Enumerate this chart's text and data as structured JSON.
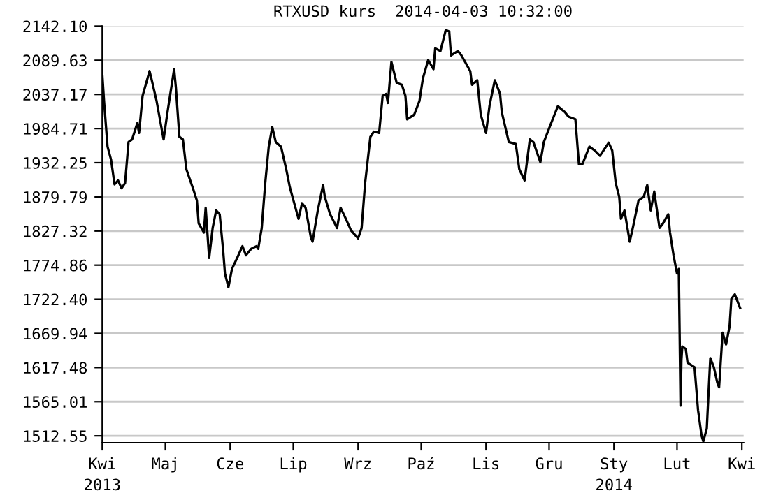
{
  "chart_data": {
    "type": "line",
    "title": "RTXUSD kurs  2014-04-03 10:32:00",
    "x": [
      "2013-04-03",
      "2013-04-04",
      "2013-04-06",
      "2013-04-08",
      "2013-04-10",
      "2013-04-12",
      "2013-04-14",
      "2013-04-16",
      "2013-04-18",
      "2013-04-20",
      "2013-04-23",
      "2013-04-24",
      "2013-04-26",
      "2013-04-30",
      "2013-05-01",
      "2013-05-04",
      "2013-05-08",
      "2013-05-10",
      "2013-05-14",
      "2013-05-15",
      "2013-05-17",
      "2013-05-19",
      "2013-05-21",
      "2013-05-25",
      "2013-05-27",
      "2013-05-28",
      "2013-05-31",
      "2013-06-01",
      "2013-06-03",
      "2013-06-05",
      "2013-06-07",
      "2013-06-09",
      "2013-06-11",
      "2013-06-12",
      "2013-06-14",
      "2013-06-16",
      "2013-06-19",
      "2013-06-22",
      "2013-06-24",
      "2013-06-27",
      "2013-06-30",
      "2013-07-01",
      "2013-07-03",
      "2013-07-05",
      "2013-07-07",
      "2013-07-09",
      "2013-07-11",
      "2013-07-14",
      "2013-07-17",
      "2013-07-19",
      "2013-07-24",
      "2013-07-26",
      "2013-07-28",
      "2013-07-31",
      "2013-08-01",
      "2013-08-04",
      "2013-08-07",
      "2013-08-08",
      "2013-08-11",
      "2013-08-15",
      "2013-08-17",
      "2013-08-20",
      "2013-08-23",
      "2013-08-27",
      "2013-08-29",
      "2013-08-31",
      "2013-09-03",
      "2013-09-05",
      "2013-09-08",
      "2013-09-10",
      "2013-09-12",
      "2013-09-13",
      "2013-09-15",
      "2013-09-18",
      "2013-09-21",
      "2013-09-23",
      "2013-09-24",
      "2013-09-28",
      "2013-10-01",
      "2013-10-03",
      "2013-10-06",
      "2013-10-09",
      "2013-10-10",
      "2013-10-13",
      "2013-10-16",
      "2013-10-18",
      "2013-10-19",
      "2013-10-23",
      "2013-10-25",
      "2013-10-30",
      "2013-10-31",
      "2013-11-03",
      "2013-11-05",
      "2013-11-08",
      "2013-11-10",
      "2013-11-13",
      "2013-11-16",
      "2013-11-17",
      "2013-11-21",
      "2013-11-25",
      "2013-11-27",
      "2013-11-30",
      "2013-12-03",
      "2013-12-05",
      "2013-12-09",
      "2013-12-11",
      "2013-12-15",
      "2013-12-19",
      "2013-12-23",
      "2013-12-25",
      "2013-12-29",
      "2013-12-31",
      "2014-01-02",
      "2014-01-06",
      "2014-01-09",
      "2014-01-12",
      "2014-01-17",
      "2014-01-19",
      "2014-01-21",
      "2014-01-23",
      "2014-01-24",
      "2014-01-26",
      "2014-01-29",
      "2014-01-31",
      "2014-02-03",
      "2014-02-06",
      "2014-02-08",
      "2014-02-10",
      "2014-02-12",
      "2014-02-15",
      "2014-02-17",
      "2014-02-20",
      "2014-02-21",
      "2014-02-23",
      "2014-02-25",
      "2014-02-26T00:00",
      "2014-02-26T12:00",
      "2014-02-27T00:00",
      "2014-02-27T12:00",
      "2014-02-28",
      "2014-03-02",
      "2014-03-03",
      "2014-03-07",
      "2014-03-09",
      "2014-03-11",
      "2014-03-12",
      "2014-03-14",
      "2014-03-15",
      "2014-03-16",
      "2014-03-18",
      "2014-03-20",
      "2014-03-21",
      "2014-03-23",
      "2014-03-25",
      "2014-03-27",
      "2014-03-28",
      "2014-03-30",
      "2014-04-01",
      "2014-04-02"
    ],
    "series": [
      {
        "color": "#000000",
        "values": [
          2069,
          2027,
          1957,
          1937,
          1899,
          1905,
          1893,
          1901,
          1964,
          1968,
          1993,
          1978,
          2035,
          2073,
          2062,
          2027,
          1968,
          2006,
          2076,
          2048,
          1972,
          1968,
          1922,
          1891,
          1874,
          1839,
          1825,
          1863,
          1786,
          1832,
          1859,
          1853,
          1797,
          1762,
          1741,
          1769,
          1786,
          1804,
          1790,
          1800,
          1804,
          1800,
          1832,
          1901,
          1957,
          1987,
          1964,
          1957,
          1922,
          1895,
          1846,
          1870,
          1863,
          1818,
          1811,
          1859,
          1898,
          1880,
          1853,
          1832,
          1863,
          1846,
          1828,
          1816,
          1832,
          1901,
          1972,
          1980,
          1978,
          2035,
          2038,
          2024,
          2087,
          2055,
          2052,
          2035,
          1999,
          2006,
          2027,
          2062,
          2090,
          2076,
          2108,
          2104,
          2136,
          2134,
          2097,
          2104,
          2097,
          2073,
          2052,
          2059,
          2006,
          1978,
          2020,
          2059,
          2038,
          2010,
          1964,
          1961,
          1922,
          1905,
          1968,
          1964,
          1933,
          1964,
          1992,
          2019,
          2010,
          2003,
          1999,
          1930,
          1930,
          1957,
          1951,
          1943,
          1963,
          1951,
          1901,
          1880,
          1846,
          1859,
          1811,
          1835,
          1874,
          1880,
          1898,
          1859,
          1888,
          1832,
          1839,
          1853,
          1825,
          1790,
          1762,
          1769,
          1667,
          1559,
          1629,
          1650,
          1646,
          1625,
          1618,
          1552,
          1513,
          1504,
          1524,
          1580,
          1632,
          1618,
          1594,
          1587,
          1671,
          1653,
          1681,
          1723,
          1730,
          1716,
          1709
        ]
      }
    ],
    "xlim": [
      "2013-04-03",
      "2014-04-04"
    ],
    "xticks": [
      {
        "value": "2013-04-03",
        "label": "Kwi\n2013"
      },
      {
        "value": "2013-05-09",
        "label": "Maj"
      },
      {
        "value": "2013-06-15",
        "label": "Cze"
      },
      {
        "value": "2013-07-21",
        "label": "Lip"
      },
      {
        "value": "2013-08-27",
        "label": "Wrz"
      },
      {
        "value": "2013-10-02",
        "label": "Paź"
      },
      {
        "value": "2013-11-08",
        "label": "Lis"
      },
      {
        "value": "2013-12-14",
        "label": "Gru"
      },
      {
        "value": "2014-01-20",
        "label": "Sty\n2014"
      },
      {
        "value": "2014-02-25",
        "label": "Lut"
      },
      {
        "value": "2014-04-03",
        "label": "Kwi"
      }
    ],
    "ylim": [
      1502,
      2142.1
    ],
    "yticks": [
      {
        "value": 1512.55,
        "label": "1512.55"
      },
      {
        "value": 1565.01,
        "label": "1565.01"
      },
      {
        "value": 1617.48,
        "label": "1617.48"
      },
      {
        "value": 1669.94,
        "label": "1669.94"
      },
      {
        "value": 1722.4,
        "label": "1722.40"
      },
      {
        "value": 1774.86,
        "label": "1774.86"
      },
      {
        "value": 1827.32,
        "label": "1827.32"
      },
      {
        "value": 1879.79,
        "label": "1879.79"
      },
      {
        "value": 1932.25,
        "label": "1932.25"
      },
      {
        "value": 1984.71,
        "label": "1984.71"
      },
      {
        "value": 2037.17,
        "label": "2037.17"
      },
      {
        "value": 2089.63,
        "label": "2089.63"
      },
      {
        "value": 2142.1,
        "label": "2142.10"
      }
    ],
    "grid": "y",
    "legend": false,
    "marker": "none",
    "line_style": "solid"
  }
}
